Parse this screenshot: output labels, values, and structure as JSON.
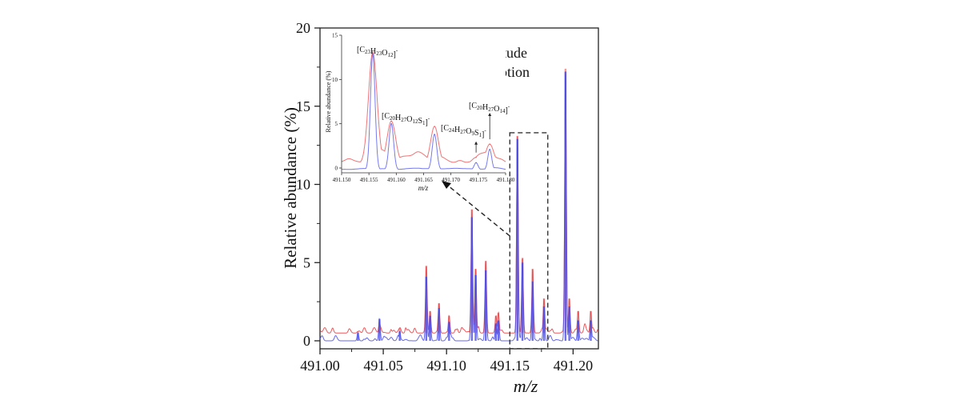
{
  "chart_data": [
    {
      "id": "main",
      "type": "line",
      "title": "",
      "xlabel": "m/z",
      "ylabel": "Relative abundance (%)",
      "xlim": [
        491.0,
        491.22
      ],
      "ylim": [
        -0.5,
        20
      ],
      "x_ticks": [
        491.0,
        491.05,
        491.1,
        491.15,
        491.2
      ],
      "x_tick_labels": [
        "491.00",
        "491.05",
        "491.10",
        "491.15",
        "491.20"
      ],
      "y_ticks": [
        0,
        5,
        10,
        15,
        20
      ],
      "y_tick_labels": [
        "0",
        "5",
        "10",
        "15",
        "20"
      ],
      "grid": false,
      "series": [
        {
          "name": "Magnitude",
          "color": "#e8474a",
          "baseline": 0.5,
          "peaks": [
            {
              "x": 491.03,
              "y": 0.6
            },
            {
              "x": 491.047,
              "y": 1.2
            },
            {
              "x": 491.063,
              "y": 0.8
            },
            {
              "x": 491.084,
              "y": 4.8
            },
            {
              "x": 491.087,
              "y": 1.9
            },
            {
              "x": 491.094,
              "y": 2.4
            },
            {
              "x": 491.102,
              "y": 1.6
            },
            {
              "x": 491.12,
              "y": 8.4
            },
            {
              "x": 491.123,
              "y": 4.6
            },
            {
              "x": 491.131,
              "y": 5.1
            },
            {
              "x": 491.139,
              "y": 1.6
            },
            {
              "x": 491.141,
              "y": 1.8
            },
            {
              "x": 491.156,
              "y": 13.1
            },
            {
              "x": 491.16,
              "y": 5.3
            },
            {
              "x": 491.168,
              "y": 4.6
            },
            {
              "x": 491.177,
              "y": 2.7
            },
            {
              "x": 491.194,
              "y": 17.4
            },
            {
              "x": 491.197,
              "y": 2.7
            },
            {
              "x": 491.204,
              "y": 1.9
            },
            {
              "x": 491.214,
              "y": 1.9
            }
          ]
        },
        {
          "name": "Absorption",
          "color": "#4a4de8",
          "baseline": 0.0,
          "peaks": [
            {
              "x": 491.03,
              "y": 0.5
            },
            {
              "x": 491.047,
              "y": 1.4
            },
            {
              "x": 491.063,
              "y": 0.6
            },
            {
              "x": 491.084,
              "y": 4.1
            },
            {
              "x": 491.087,
              "y": 1.6
            },
            {
              "x": 491.094,
              "y": 2.1
            },
            {
              "x": 491.102,
              "y": 1.2
            },
            {
              "x": 491.12,
              "y": 7.9
            },
            {
              "x": 491.123,
              "y": 4.2
            },
            {
              "x": 491.131,
              "y": 4.5
            },
            {
              "x": 491.139,
              "y": 1.1
            },
            {
              "x": 491.141,
              "y": 1.3
            },
            {
              "x": 491.156,
              "y": 12.9
            },
            {
              "x": 491.16,
              "y": 5.0
            },
            {
              "x": 491.168,
              "y": 3.8
            },
            {
              "x": 491.177,
              "y": 2.2
            },
            {
              "x": 491.194,
              "y": 17.2
            },
            {
              "x": 491.197,
              "y": 2.2
            },
            {
              "x": 491.204,
              "y": 1.3
            },
            {
              "x": 491.214,
              "y": 1.3
            }
          ]
        }
      ],
      "zoom_box": {
        "x_range": [
          491.15,
          491.18
        ],
        "y_range": [
          -0.5,
          13.3
        ]
      },
      "legend": {
        "placement": "top-center",
        "entries": [
          "Magnitude",
          "Absorption"
        ]
      }
    },
    {
      "id": "inset",
      "type": "line",
      "title": "",
      "xlabel": "m/z",
      "ylabel": "Relative abundance (%)",
      "xlim": [
        491.15,
        491.18
      ],
      "ylim": [
        -0.5,
        15
      ],
      "x_ticks": [
        491.15,
        491.155,
        491.16,
        491.165,
        491.17,
        491.175,
        491.18
      ],
      "x_tick_labels": [
        "491.150",
        "491.155",
        "491.160",
        "491.165",
        "491.170",
        "491.175",
        "491.180"
      ],
      "y_ticks": [
        0,
        5,
        10,
        15
      ],
      "y_tick_labels": [
        "0",
        "5",
        "10",
        "15"
      ],
      "grid": false,
      "series": [
        {
          "name": "Magnitude",
          "color": "#e8474a",
          "baseline": 0.5,
          "peaks": [
            {
              "x": 491.1557,
              "y": 13.1,
              "w": 0.0011
            },
            {
              "x": 491.1591,
              "y": 5.3,
              "w": 0.0011
            },
            {
              "x": 491.167,
              "y": 4.7,
              "w": 0.001
            },
            {
              "x": 491.1746,
              "y": 1.2,
              "w": 0.001
            },
            {
              "x": 491.1771,
              "y": 2.7,
              "w": 0.001
            }
          ]
        },
        {
          "name": "Absorption",
          "color": "#4a4de8",
          "baseline": -0.2,
          "peaks": [
            {
              "x": 491.1557,
              "y": 12.9,
              "w": 0.0006
            },
            {
              "x": 491.1591,
              "y": 5.0,
              "w": 0.0006
            },
            {
              "x": 491.167,
              "y": 3.8,
              "w": 0.0006
            },
            {
              "x": 491.1746,
              "y": 0.6,
              "w": 0.0005
            },
            {
              "x": 491.1771,
              "y": 2.1,
              "w": 0.0005
            }
          ]
        }
      ],
      "annotations": [
        {
          "label": "[C23H23O12]⁻",
          "parts": [
            [
              "[C",
              ""
            ],
            [
              "23",
              "sub"
            ],
            [
              "H",
              ""
            ],
            [
              "23",
              "sub"
            ],
            [
              "O",
              ""
            ],
            [
              "12",
              "sub"
            ],
            [
              "]",
              ""
            ],
            [
              "-",
              "sup"
            ]
          ],
          "x": 491.1557,
          "y": 13.1,
          "arrow": false
        },
        {
          "label": "[C20H27O12S1]⁻",
          "parts": [
            [
              "[C",
              ""
            ],
            [
              "20",
              "sub"
            ],
            [
              "H",
              ""
            ],
            [
              "27",
              "sub"
            ],
            [
              "O",
              ""
            ],
            [
              "12",
              "sub"
            ],
            [
              "S",
              ""
            ],
            [
              "1",
              "sub"
            ],
            [
              "]",
              ""
            ],
            [
              "-",
              "sup"
            ]
          ],
          "x": 491.1591,
          "y": 5.3,
          "arrow": false
        },
        {
          "label": "[C24H27O9S1]⁻",
          "parts": [
            [
              "[C",
              ""
            ],
            [
              "24",
              "sub"
            ],
            [
              "H",
              ""
            ],
            [
              "27",
              "sub"
            ],
            [
              "O",
              ""
            ],
            [
              "9",
              "sub"
            ],
            [
              "S",
              ""
            ],
            [
              "1",
              "sub"
            ],
            [
              "]",
              ""
            ],
            [
              "-",
              "sup"
            ]
          ],
          "x": 491.1746,
          "y": 1.2,
          "arrow": true
        },
        {
          "label": "[C20H27O14]⁻",
          "parts": [
            [
              "[C",
              ""
            ],
            [
              "20",
              "sub"
            ],
            [
              "H",
              ""
            ],
            [
              "27",
              "sub"
            ],
            [
              "O",
              ""
            ],
            [
              "14",
              "sub"
            ],
            [
              "]",
              ""
            ],
            [
              "-",
              "sup"
            ]
          ],
          "x": 491.1771,
          "y": 2.7,
          "arrow": true
        }
      ]
    }
  ]
}
